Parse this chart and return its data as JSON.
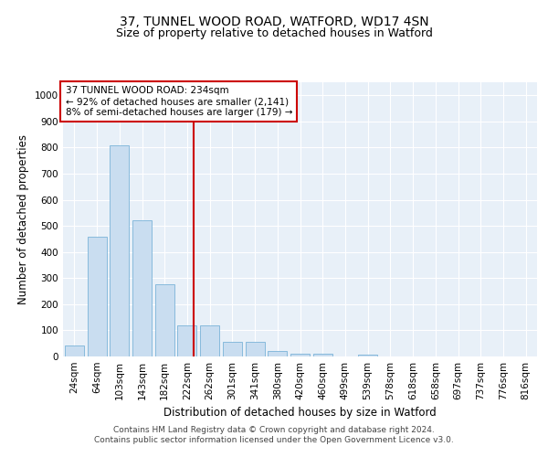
{
  "title": "37, TUNNEL WOOD ROAD, WATFORD, WD17 4SN",
  "subtitle": "Size of property relative to detached houses in Watford",
  "xlabel": "Distribution of detached houses by size in Watford",
  "ylabel": "Number of detached properties",
  "bar_labels": [
    "24sqm",
    "64sqm",
    "103sqm",
    "143sqm",
    "182sqm",
    "222sqm",
    "262sqm",
    "301sqm",
    "341sqm",
    "380sqm",
    "420sqm",
    "460sqm",
    "499sqm",
    "539sqm",
    "578sqm",
    "618sqm",
    "658sqm",
    "697sqm",
    "737sqm",
    "776sqm",
    "816sqm"
  ],
  "bar_values": [
    42,
    460,
    810,
    520,
    275,
    120,
    120,
    57,
    57,
    20,
    10,
    10,
    0,
    8,
    0,
    0,
    0,
    0,
    0,
    0,
    0
  ],
  "bar_color": "#c9ddf0",
  "bar_edge_color": "#7ab3d8",
  "vline_color": "#cc0000",
  "annotation_text": "37 TUNNEL WOOD ROAD: 234sqm\n← 92% of detached houses are smaller (2,141)\n8% of semi-detached houses are larger (179) →",
  "annotation_box_color": "#cc0000",
  "ylim": [
    0,
    1050
  ],
  "yticks": [
    0,
    100,
    200,
    300,
    400,
    500,
    600,
    700,
    800,
    900,
    1000
  ],
  "footer_line1": "Contains HM Land Registry data © Crown copyright and database right 2024.",
  "footer_line2": "Contains public sector information licensed under the Open Government Licence v3.0.",
  "bg_color": "#e8f0f8",
  "grid_color": "#ffffff",
  "title_fontsize": 10,
  "subtitle_fontsize": 9,
  "axis_label_fontsize": 8.5,
  "tick_fontsize": 7.5,
  "annotation_fontsize": 7.5,
  "footer_fontsize": 6.5
}
